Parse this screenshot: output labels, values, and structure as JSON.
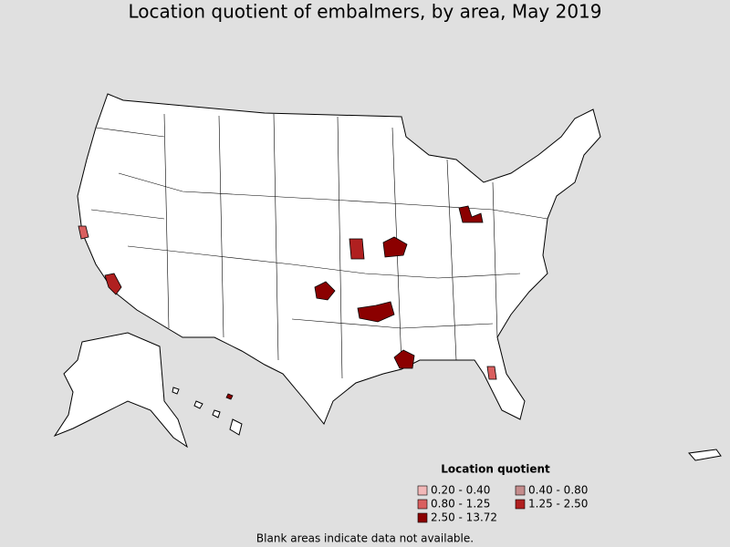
{
  "title": "Location quotient of embalmers, by area, May 2019",
  "legend": {
    "title": "Location quotient",
    "items": [
      {
        "label": "0.20 - 0.40",
        "color": "#f2b8b8"
      },
      {
        "label": "0.40 - 0.80",
        "color": "#c48c8c"
      },
      {
        "label": "0.80 - 1.25",
        "color": "#d95f5f"
      },
      {
        "label": "1.25 - 2.50",
        "color": "#b02020"
      },
      {
        "label": "2.50 - 13.72",
        "color": "#8b0000"
      }
    ]
  },
  "footnote": "Blank areas indicate data not available."
}
